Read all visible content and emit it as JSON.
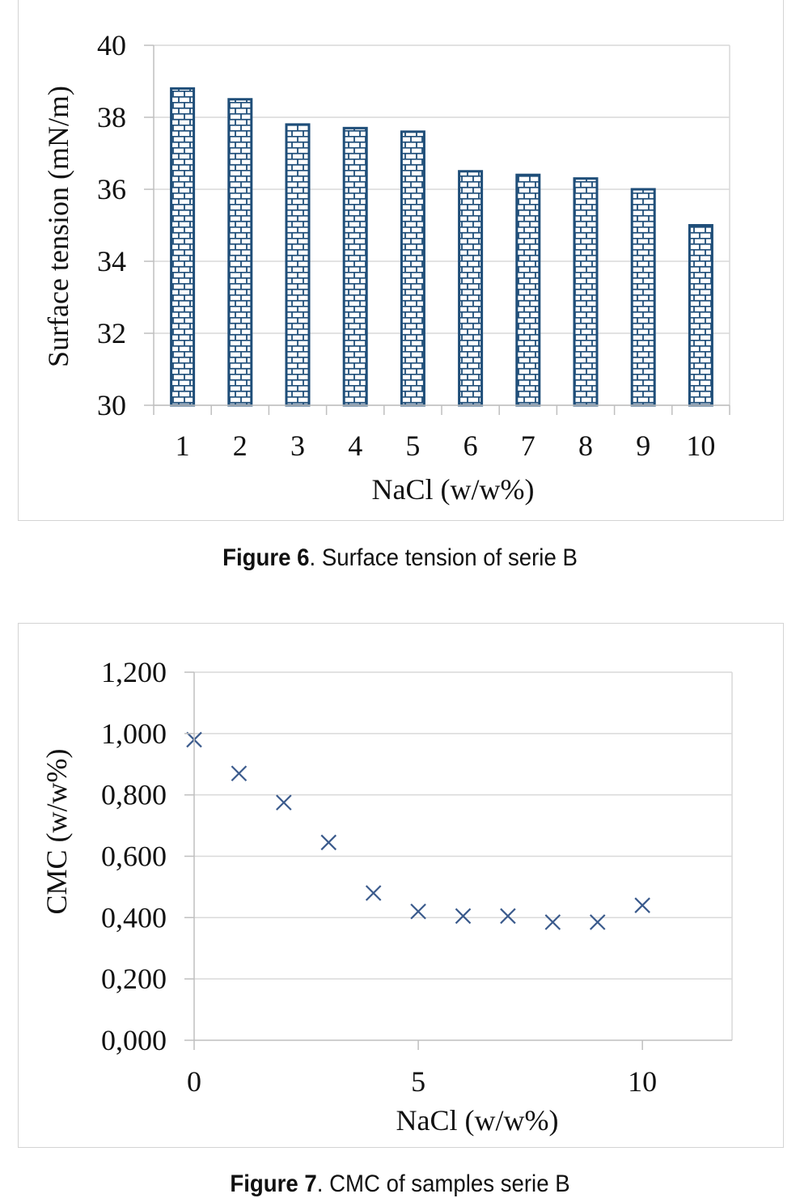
{
  "chart_data": [
    {
      "type": "bar",
      "categories": [
        "1",
        "2",
        "3",
        "4",
        "5",
        "6",
        "7",
        "8",
        "9",
        "10"
      ],
      "values": [
        38.8,
        38.5,
        37.8,
        37.7,
        37.6,
        36.5,
        36.4,
        36.3,
        36.0,
        35.0
      ],
      "xlabel": "NaCl (w/w%)",
      "ylabel": "Surface tension (mN/m)",
      "ylim": [
        30,
        40
      ],
      "yticks": [
        "30",
        "32",
        "34",
        "36",
        "38",
        "40"
      ],
      "grid": true,
      "bar_fill": "brick pattern",
      "colors": {
        "bar_outline": "#1f4e79",
        "grid": "#d9d9d9"
      }
    },
    {
      "type": "scatter",
      "x": [
        0,
        1,
        2,
        3,
        4,
        5,
        6,
        7,
        8,
        9,
        10
      ],
      "y": [
        0.98,
        0.87,
        0.775,
        0.645,
        0.48,
        0.42,
        0.405,
        0.405,
        0.385,
        0.385,
        0.44
      ],
      "xlabel": "NaCl (w/w%)",
      "ylabel": "CMC (w/w%)",
      "xlim": [
        0,
        12
      ],
      "ylim": [
        0,
        1.2
      ],
      "xticks": [
        "0",
        "5",
        "10"
      ],
      "yticks": [
        "0,000",
        "0,200",
        "0,400",
        "0,600",
        "0,800",
        "1,000",
        "1,200"
      ],
      "marker": "x",
      "grid": true,
      "colors": {
        "marker": "#3a5a8c",
        "grid": "#d9d9d9"
      }
    }
  ],
  "captions": {
    "fig6": {
      "label": "Figure 6",
      "text": ". Surface tension of serie B"
    },
    "fig7": {
      "label": "Figure 7",
      "text": ". CMC of samples serie B"
    }
  }
}
